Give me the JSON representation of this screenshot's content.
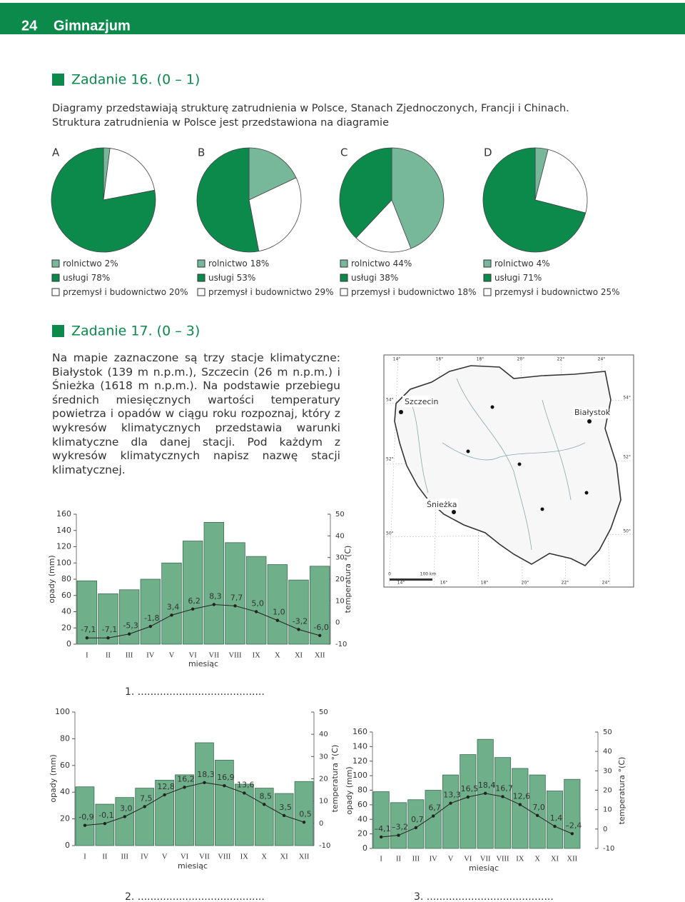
{
  "header": {
    "page": "24",
    "section": "Gimnazjum"
  },
  "task16": {
    "title": "Zadanie 16. (0 – 1)",
    "text": [
      "Diagramy przedstawiają strukturę zatrudnienia w Polsce, Stanach Zjednoczonych, Francji i Chinach.",
      "Struktura zatrudnienia w Polsce jest przedstawiona na diagramie"
    ],
    "charts": [
      {
        "type": "pie",
        "label": "A",
        "categories": [
          "rolnictwo",
          "usługi",
          "przemysł i budownictwo"
        ],
        "values": [
          2,
          78,
          20
        ],
        "value_labels": [
          "2%",
          "78%",
          "20%"
        ],
        "colors": [
          "#77b79a",
          "#0b8a4c",
          "#ffffff"
        ]
      },
      {
        "type": "pie",
        "label": "B",
        "categories": [
          "rolnictwo",
          "usługi",
          "przemysł i budownictwo"
        ],
        "values": [
          18,
          53,
          29
        ],
        "value_labels": [
          "18%",
          "53%",
          "29%"
        ],
        "colors": [
          "#77b79a",
          "#0b8a4c",
          "#ffffff"
        ]
      },
      {
        "type": "pie",
        "label": "C",
        "categories": [
          "rolnictwo",
          "usługi",
          "przemysł i budownictwo"
        ],
        "values": [
          44,
          38,
          18
        ],
        "value_labels": [
          "44%",
          "38%",
          "18%"
        ],
        "colors": [
          "#77b79a",
          "#0b8a4c",
          "#ffffff"
        ]
      },
      {
        "type": "pie",
        "label": "D",
        "categories": [
          "rolnictwo",
          "usługi",
          "przemysł i budownictwo"
        ],
        "values": [
          4,
          71,
          25
        ],
        "value_labels": [
          "4%",
          "71%",
          "25%"
        ],
        "colors": [
          "#77b79a",
          "#0b8a4c",
          "#ffffff"
        ]
      }
    ]
  },
  "task17": {
    "title": "Zadanie 17. (0 – 3)",
    "text": "Na mapie zaznaczone są trzy stacje klimatyczne: Białystok (139 m n.p.m.), Szczecin (26 m n.p.m.) i Śnieżka (1618 m n.p.m.). Na podstawie przebiegu średnich miesięcznych wartości temperatury powietrza i opadów w ciągu roku rozpoznaj, który z wykresów klimatycznych przedstawia warunki klimatyczne dla danej stacji. Pod każdym z wykresów klimatycznych napisz nazwę stacji klimatycznej.",
    "map": {
      "stations": [
        "Szczecin",
        "Białystok",
        "Śnieżka"
      ],
      "longitudes": [
        "14°",
        "16°",
        "18°",
        "20°",
        "22°",
        "24°"
      ],
      "latitudes": [
        "54°",
        "52°",
        "50°"
      ],
      "scale": [
        "0",
        "100 km"
      ]
    },
    "charts": [
      {
        "type": "climate",
        "categories": [
          "I",
          "II",
          "III",
          "IV",
          "V",
          "VI",
          "VII",
          "VIII",
          "IX",
          "X",
          "XI",
          "XII"
        ],
        "xlabel": "miesiąc",
        "ylabel": "opady (mm)",
        "y2label": "temperatura °(C)",
        "ylim": [
          0,
          160
        ],
        "yticks": [
          0,
          20,
          40,
          60,
          80,
          100,
          120,
          140,
          160
        ],
        "y2lim": [
          -10,
          50
        ],
        "y2ticks": [
          -10,
          0,
          10,
          20,
          30,
          40,
          50
        ],
        "series": [
          {
            "color": "#6fb08a",
            "values": [
              78,
              62,
              67,
              80,
              100,
              127,
              150,
              125,
              108,
              98,
              79,
              96
            ]
          },
          {
            "axis": "y2",
            "color": "#222222",
            "values": [
              -7.1,
              -7.1,
              -5.3,
              -1.8,
              3.4,
              6.2,
              8.3,
              7.7,
              5.0,
              1.0,
              -3.2,
              -6.0
            ],
            "value_labels": [
              "-7,1",
              "-7,1",
              "-5,3",
              "-1,8",
              "3,4",
              "6,2",
              "8,3",
              "7,7",
              "5,0",
              "1,0",
              "-3,2",
              "-6,0"
            ]
          }
        ]
      },
      {
        "type": "climate",
        "categories": [
          "I",
          "II",
          "III",
          "IV",
          "V",
          "VI",
          "VII",
          "VIII",
          "IX",
          "X",
          "XI",
          "XII"
        ],
        "xlabel": "miesiąc",
        "ylabel": "opady (mm)",
        "y2label": "temperatura °(C)",
        "ylim": [
          0,
          100
        ],
        "yticks": [
          0,
          20,
          40,
          60,
          80,
          100
        ],
        "y2lim": [
          -10,
          50
        ],
        "y2ticks": [
          -10,
          0,
          10,
          20,
          30,
          40,
          50
        ],
        "series": [
          {
            "color": "#6fb08a",
            "values": [
              44,
              31,
              36,
              43,
              49,
              53,
              77,
              64,
              46,
              43,
              39,
              48
            ]
          },
          {
            "axis": "y2",
            "color": "#222222",
            "values": [
              -0.9,
              -0.1,
              3.0,
              7.5,
              12.8,
              16.2,
              18.3,
              16.9,
              13.6,
              8.5,
              3.5,
              0.5
            ],
            "value_labels": [
              "-0,9",
              "-0,1",
              "3,0",
              "7,5",
              "12,8",
              "16,2",
              "18,3",
              "16,9",
              "13,6",
              "8,5",
              "3,5",
              "0,5"
            ]
          }
        ]
      },
      {
        "type": "climate",
        "categories": [
          "I",
          "II",
          "III",
          "IV",
          "V",
          "VI",
          "VII",
          "VIII",
          "IX",
          "X",
          "XI",
          "XII"
        ],
        "xlabel": "miesiąc",
        "ylabel": "opady (mm)",
        "y2label": "temperatura °(C)",
        "ylim": [
          0,
          160
        ],
        "yticks": [
          0,
          20,
          40,
          60,
          80,
          100,
          120,
          140,
          160
        ],
        "y2lim": [
          -10,
          50
        ],
        "y2ticks": [
          -10,
          0,
          10,
          20,
          30,
          40,
          50
        ],
        "series": [
          {
            "color": "#6fb08a",
            "values": [
              78,
              63,
              67,
              80,
              101,
              129,
              150,
              125,
              110,
              101,
              79,
              95
            ]
          },
          {
            "axis": "y2",
            "color": "#222222",
            "values": [
              -4.1,
              -3.2,
              0.7,
              6.7,
              13.3,
              16.5,
              18.4,
              16.7,
              12.6,
              7.0,
              1.4,
              -2.4
            ],
            "value_labels": [
              "–4,1",
              "–3,2",
              "0,7",
              "6,7",
              "13,3",
              "16,5",
              "18,4",
              "16,7",
              "12,6",
              "7,0",
              "1,4",
              "–2,4"
            ]
          }
        ]
      }
    ],
    "answers": [
      "1. ........................................",
      "2. ........................................",
      "3. ........................................"
    ]
  }
}
